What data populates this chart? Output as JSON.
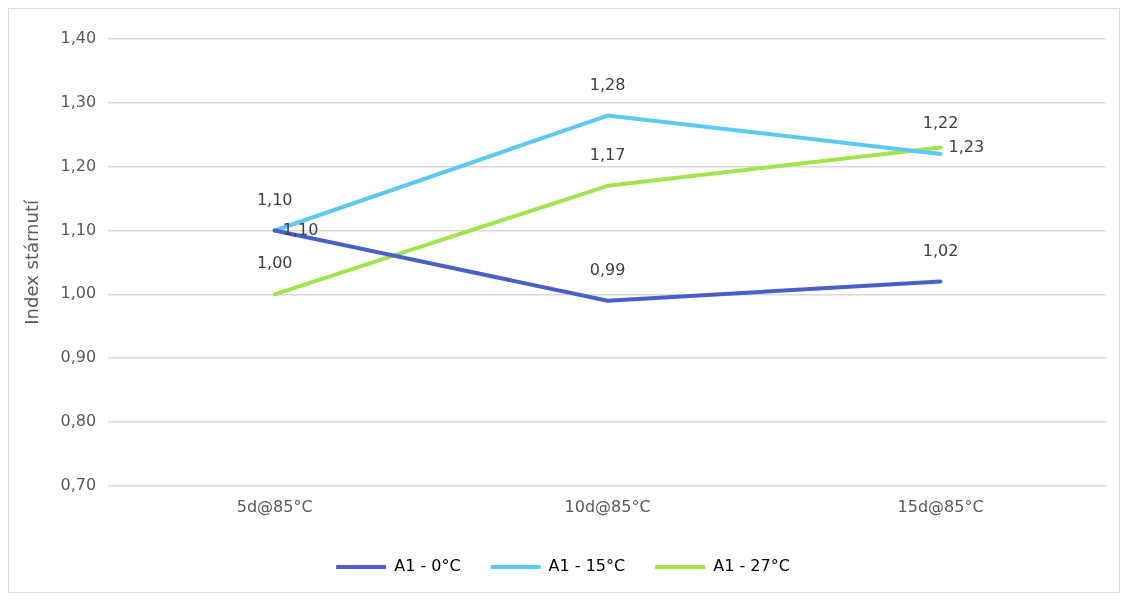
{
  "chart_data": {
    "type": "line",
    "ylabel": "Index stárnutí",
    "categories": [
      "5d@85°C",
      "10d@85°C",
      "15d@85°C"
    ],
    "series": [
      {
        "name": "A1 - 0°C",
        "color": "#4a5fc9",
        "values": [
          1.1,
          0.99,
          1.02
        ],
        "value_labels": [
          "1,10",
          "0,99",
          "1,02"
        ]
      },
      {
        "name": "A1 - 15°C",
        "color": "#5bc9f2",
        "values": [
          1.1,
          1.28,
          1.22
        ],
        "value_labels": [
          "1,10",
          "1,28",
          "1,22"
        ]
      },
      {
        "name": "A1 - 27°C",
        "color": "#a3e44e",
        "values": [
          1.0,
          1.17,
          1.23
        ],
        "value_labels": [
          "1,00",
          "1,17",
          "1,23"
        ]
      }
    ],
    "ylim": [
      0.7,
      1.4
    ],
    "yticks": [
      {
        "value": 0.7,
        "label": "0,70"
      },
      {
        "value": 0.8,
        "label": "0,80"
      },
      {
        "value": 0.9,
        "label": "0,90"
      },
      {
        "value": 1.0,
        "label": "1,00"
      },
      {
        "value": 1.1,
        "label": "1,10"
      },
      {
        "value": 1.2,
        "label": "1,20"
      },
      {
        "value": 1.3,
        "label": "1,30"
      },
      {
        "value": 1.4,
        "label": "1,40"
      }
    ],
    "grid": "y",
    "legend": "bottom",
    "marker": "none",
    "line_style": "solid"
  }
}
